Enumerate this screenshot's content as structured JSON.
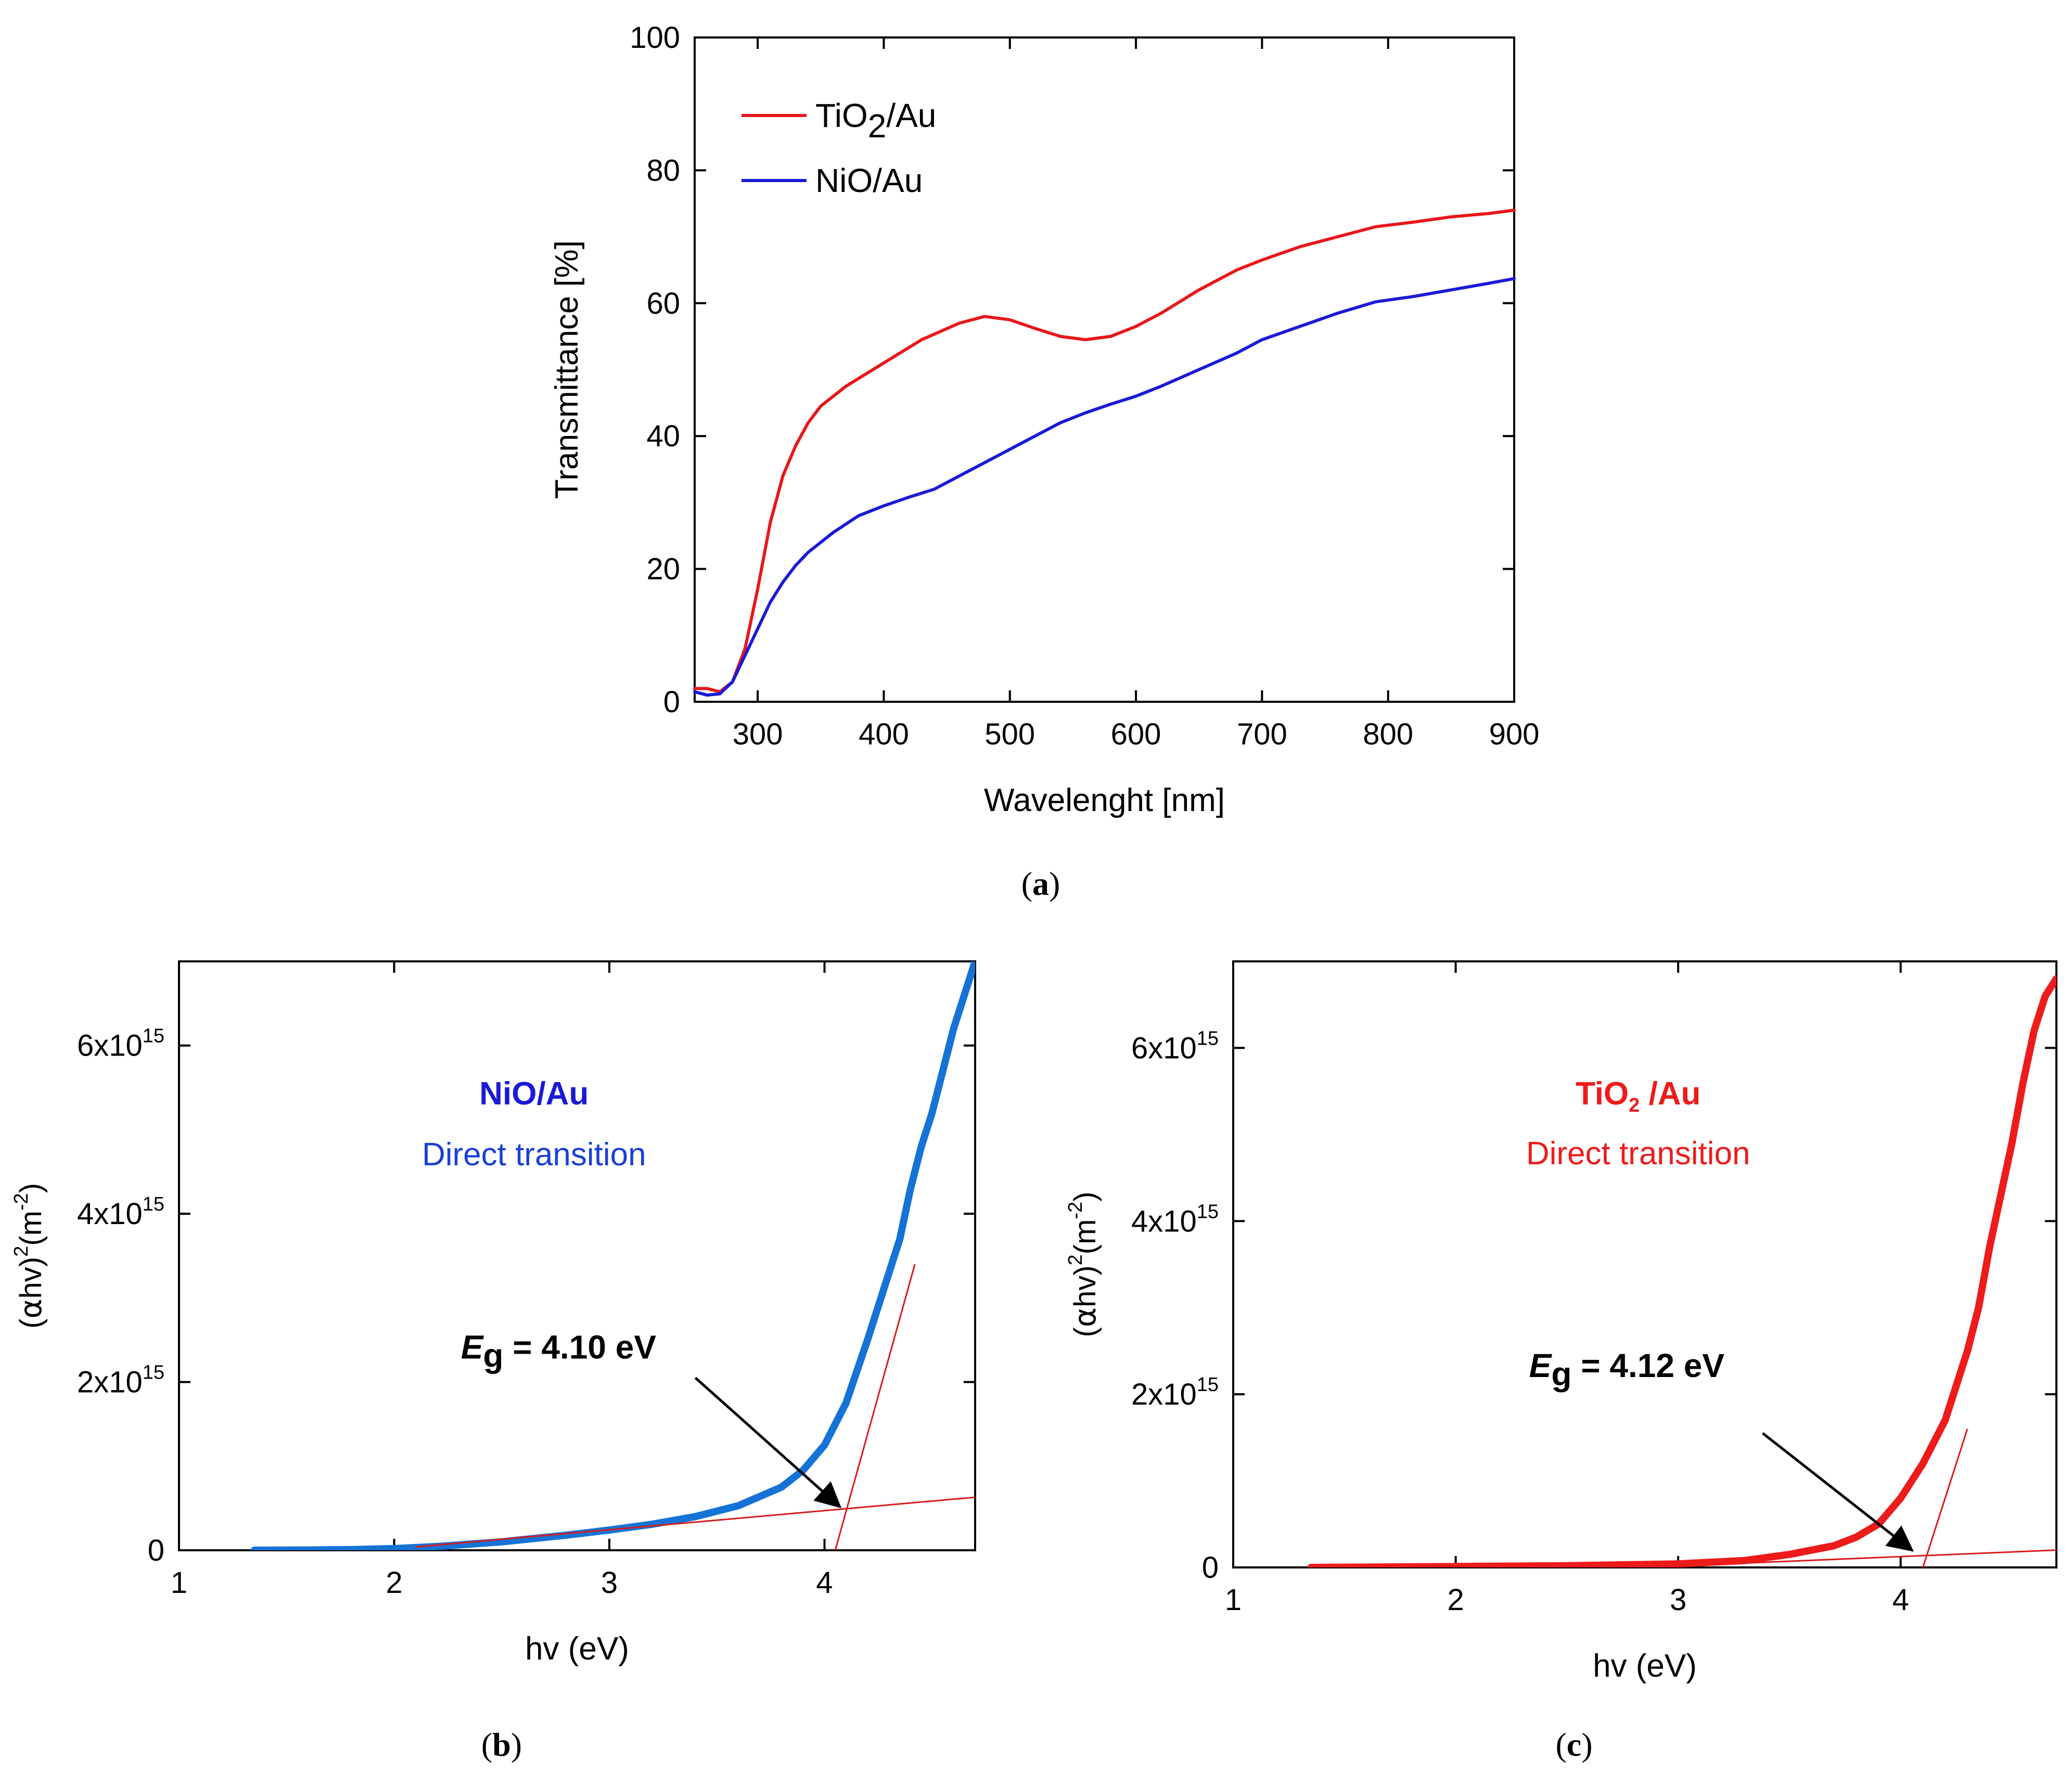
{
  "figure": {
    "panel_labels": {
      "a": "a",
      "b": "b",
      "c": "c"
    }
  },
  "chart_data": [
    {
      "id": "a",
      "type": "line",
      "title": "",
      "xlabel": "Wavelenght [nm]",
      "ylabel": "Transmittance [%]",
      "xlim": [
        250,
        900
      ],
      "ylim": [
        0,
        100
      ],
      "xticks": [
        300,
        400,
        500,
        600,
        700,
        800,
        900
      ],
      "yticks": [
        0,
        20,
        40,
        60,
        80,
        100
      ],
      "legend": {
        "position": "top-left"
      },
      "series": [
        {
          "name": "TiO2/Au",
          "label_main": "TiO",
          "label_sub": "2",
          "label_suffix": "/Au",
          "color": "#e8161b",
          "points": [
            [
              250,
              2
            ],
            [
              260,
              2
            ],
            [
              270,
              1.5
            ],
            [
              280,
              3
            ],
            [
              290,
              8
            ],
            [
              300,
              17
            ],
            [
              310,
              27
            ],
            [
              320,
              34
            ],
            [
              330,
              38.5
            ],
            [
              340,
              42
            ],
            [
              350,
              44.5
            ],
            [
              370,
              47.5
            ],
            [
              400,
              51
            ],
            [
              430,
              54.5
            ],
            [
              460,
              57
            ],
            [
              480,
              58
            ],
            [
              500,
              57.5
            ],
            [
              520,
              56.2
            ],
            [
              540,
              55
            ],
            [
              560,
              54.5
            ],
            [
              580,
              55
            ],
            [
              600,
              56.5
            ],
            [
              620,
              58.5
            ],
            [
              650,
              62
            ],
            [
              680,
              65
            ],
            [
              700,
              66.5
            ],
            [
              730,
              68.5
            ],
            [
              760,
              70
            ],
            [
              790,
              71.5
            ],
            [
              820,
              72.2
            ],
            [
              850,
              73
            ],
            [
              880,
              73.5
            ],
            [
              900,
              74
            ]
          ]
        },
        {
          "name": "NiO/Au",
          "label_main": "NiO/Au",
          "label_sub": "",
          "label_suffix": "",
          "color": "#1a1ad8",
          "points": [
            [
              250,
              1.5
            ],
            [
              260,
              1
            ],
            [
              270,
              1.2
            ],
            [
              280,
              3
            ],
            [
              290,
              7
            ],
            [
              300,
              11
            ],
            [
              310,
              15
            ],
            [
              320,
              18
            ],
            [
              330,
              20.5
            ],
            [
              340,
              22.5
            ],
            [
              360,
              25.5
            ],
            [
              380,
              28
            ],
            [
              400,
              29.5
            ],
            [
              420,
              30.8
            ],
            [
              440,
              32
            ],
            [
              460,
              34
            ],
            [
              480,
              36
            ],
            [
              500,
              38
            ],
            [
              520,
              40
            ],
            [
              540,
              42
            ],
            [
              560,
              43.5
            ],
            [
              580,
              44.8
            ],
            [
              600,
              46
            ],
            [
              620,
              47.5
            ],
            [
              650,
              50
            ],
            [
              680,
              52.5
            ],
            [
              700,
              54.5
            ],
            [
              730,
              56.5
            ],
            [
              760,
              58.5
            ],
            [
              790,
              60.2
            ],
            [
              820,
              61
            ],
            [
              850,
              62
            ],
            [
              880,
              63
            ],
            [
              900,
              63.7
            ]
          ]
        }
      ]
    },
    {
      "id": "b",
      "type": "line",
      "title": "",
      "xlabel": "hv (eV)",
      "ylabel": "(αhv)²(m⁻²)",
      "xlim": [
        1,
        4.7
      ],
      "ylim": [
        0,
        7000000000000000.0
      ],
      "xticks": [
        1,
        2,
        3,
        4
      ],
      "yticks": [
        0,
        2000000000000000.0,
        4000000000000000.0,
        6000000000000000.0
      ],
      "ytick_labels": [
        "0",
        "2x10",
        "4x10",
        "6x10"
      ],
      "ytick_exponent": "15",
      "annotations": {
        "sample": "NiO/Au",
        "transition": "Direct transition",
        "eg_symbol": "E",
        "eg_sub": "g",
        "eg_value": " = 4.10 eV",
        "arrow_tip": [
          4.08,
          500000000000000.0
        ],
        "arrow_from": [
          3.4,
          2000000000000000.0
        ],
        "text_anchor": [
          2.3,
          2200000000000000.0
        ]
      },
      "fits": [
        {
          "x": [
            4.05,
            4.42
          ],
          "y": [
            0,
            3400000000000000.0
          ]
        },
        {
          "x": [
            2.1,
            4.7
          ],
          "y": [
            40000000000000.0,
            630000000000000.0
          ]
        }
      ],
      "series": [
        {
          "name": "NiO/Au",
          "color": "#1673d6",
          "points": [
            [
              1.35,
              0
            ],
            [
              1.6,
              3000000000000.0
            ],
            [
              1.8,
              8000000000000.0
            ],
            [
              2.0,
              20000000000000.0
            ],
            [
              2.2,
              45000000000000.0
            ],
            [
              2.5,
              100000000000000.0
            ],
            [
              2.8,
              180000000000000.0
            ],
            [
              3.0,
              240000000000000.0
            ],
            [
              3.2,
              310000000000000.0
            ],
            [
              3.4,
              400000000000000.0
            ],
            [
              3.6,
              530000000000000.0
            ],
            [
              3.8,
              750000000000000.0
            ],
            [
              3.9,
              950000000000000.0
            ],
            [
              4.0,
              1250000000000000.0
            ],
            [
              4.1,
              1750000000000000.0
            ],
            [
              4.2,
              2500000000000000.0
            ],
            [
              4.3,
              3300000000000000.0
            ],
            [
              4.35,
              3700000000000000.0
            ],
            [
              4.4,
              4300000000000000.0
            ],
            [
              4.45,
              4800000000000000.0
            ],
            [
              4.5,
              5200000000000000.0
            ],
            [
              4.55,
              5700000000000000.0
            ],
            [
              4.6,
              6200000000000000.0
            ],
            [
              4.65,
              6600000000000000.0
            ],
            [
              4.7,
              7000000000000000.0
            ]
          ]
        }
      ]
    },
    {
      "id": "c",
      "type": "line",
      "title": "",
      "xlabel": "hv (eV)",
      "ylabel": "(αhv)²(m⁻²)",
      "xlim": [
        1,
        4.7
      ],
      "ylim": [
        0,
        7000000000000000.0
      ],
      "xticks": [
        1,
        2,
        3,
        4
      ],
      "yticks": [
        0,
        2000000000000000.0,
        4000000000000000.0,
        6000000000000000.0
      ],
      "ytick_labels": [
        "0",
        "2x10",
        "4x10",
        "6x10"
      ],
      "ytick_exponent": "15",
      "annotations": {
        "sample_main": "TiO",
        "sample_sub": "2",
        "sample_suffix": " /Au",
        "transition": "Direct transition",
        "eg_symbol": "E",
        "eg_sub": "g",
        "eg_value": " = 4.12 eV",
        "arrow_tip": [
          4.05,
          200000000000000.0
        ],
        "arrow_from": [
          3.4,
          1500000000000000.0
        ],
        "text_anchor": [
          2.3,
          2200000000000000.0
        ]
      },
      "fits": [
        {
          "x": [
            4.1,
            4.3
          ],
          "y": [
            0,
            1600000000000000.0
          ]
        },
        {
          "x": [
            3.3,
            4.7
          ],
          "y": [
            50000000000000.0,
            200000000000000.0
          ]
        }
      ],
      "series": [
        {
          "name": "TiO2/Au",
          "color": "#ee1b1b",
          "points": [
            [
              1.35,
              0
            ],
            [
              2.0,
              10000000000000.0
            ],
            [
              2.5,
              20000000000000.0
            ],
            [
              3.0,
              40000000000000.0
            ],
            [
              3.3,
              80000000000000.0
            ],
            [
              3.5,
              150000000000000.0
            ],
            [
              3.7,
              250000000000000.0
            ],
            [
              3.8,
              350000000000000.0
            ],
            [
              3.9,
              500000000000000.0
            ],
            [
              4.0,
              800000000000000.0
            ],
            [
              4.1,
              1200000000000000.0
            ],
            [
              4.2,
              1700000000000000.0
            ],
            [
              4.3,
              2500000000000000.0
            ],
            [
              4.35,
              3000000000000000.0
            ],
            [
              4.4,
              3700000000000000.0
            ],
            [
              4.45,
              4300000000000000.0
            ],
            [
              4.5,
              4900000000000000.0
            ],
            [
              4.55,
              5600000000000000.0
            ],
            [
              4.6,
              6200000000000000.0
            ],
            [
              4.65,
              6600000000000000.0
            ],
            [
              4.7,
              6800000000000000.0
            ]
          ]
        }
      ]
    }
  ]
}
